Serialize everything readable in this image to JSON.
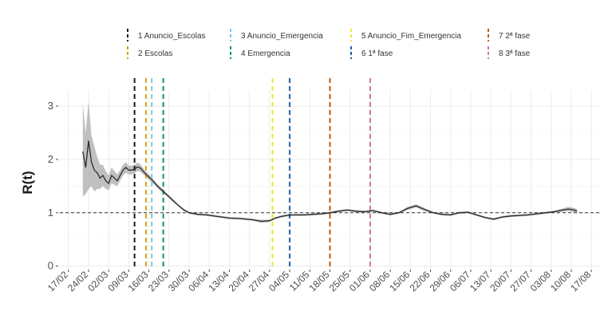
{
  "chart_data": {
    "type": "line",
    "title": "",
    "xlabel": "",
    "ylabel": "R(t)",
    "ylim": [
      -0.05,
      3.3
    ],
    "y_ticks": [
      0,
      1,
      2,
      3
    ],
    "grid": true,
    "reference_line": {
      "y": 1,
      "style": "dashed",
      "color": "#333333"
    },
    "x_ticks": [
      "17/02",
      "24/02",
      "02/03",
      "09/03",
      "16/03",
      "23/03",
      "30/03",
      "06/04",
      "13/04",
      "20/04",
      "27/04",
      "04/05",
      "11/05",
      "18/05",
      "25/05",
      "01/06",
      "08/06",
      "15/06",
      "22/06",
      "29/06",
      "06/07",
      "13/07",
      "20/07",
      "27/07",
      "03/08",
      "10/08",
      "17/08"
    ],
    "legend": {
      "placement": "top",
      "entries": [
        {
          "label": "1 Anuncio_Escolas",
          "color": "#1a1a1a",
          "day": 23
        },
        {
          "label": "2 Escolas",
          "color": "#d9a21a",
          "day": 27
        },
        {
          "label": "3 Anuncio_Emergencia",
          "color": "#7fc4e8",
          "day": 29
        },
        {
          "label": "4 Emergencia",
          "color": "#0e8f73",
          "day": 33
        },
        {
          "label": "5 Anuncio_Fim_Emergencia",
          "color": "#f0e442",
          "day": 71
        },
        {
          "label": "6 1ª fase",
          "color": "#1f5fa0",
          "day": 77
        },
        {
          "label": "7 2ª fase",
          "color": "#c0580f",
          "day": 91
        },
        {
          "label": "8 3ª fase",
          "color": "#cc79a7",
          "day": 105
        }
      ]
    },
    "series": [
      {
        "x_day": [
          5,
          6,
          7,
          8,
          9,
          10,
          11,
          12,
          13,
          14,
          15,
          16,
          17,
          18,
          19,
          20,
          21,
          22,
          23,
          24,
          25,
          26,
          27,
          28,
          29,
          30,
          31,
          32,
          33,
          34,
          35,
          36,
          38,
          40,
          42,
          45,
          48,
          52,
          56,
          60,
          64,
          67,
          70,
          72,
          74,
          76,
          78,
          80,
          82,
          85,
          88,
          91,
          94,
          97,
          100,
          103,
          106,
          109,
          112,
          115,
          118,
          121,
          124,
          127,
          130,
          133,
          136,
          139,
          142,
          145,
          148,
          151,
          154,
          157,
          160,
          163,
          166,
          169,
          172,
          174,
          176,
          177
        ],
        "y": [
          2.15,
          1.85,
          2.35,
          1.95,
          1.8,
          1.75,
          1.65,
          1.7,
          1.6,
          1.55,
          1.7,
          1.65,
          1.6,
          1.7,
          1.8,
          1.85,
          1.8,
          1.8,
          1.82,
          1.86,
          1.84,
          1.78,
          1.72,
          1.67,
          1.62,
          1.56,
          1.5,
          1.45,
          1.4,
          1.35,
          1.3,
          1.25,
          1.15,
          1.06,
          1.0,
          0.97,
          0.96,
          0.93,
          0.9,
          0.89,
          0.87,
          0.84,
          0.85,
          0.9,
          0.93,
          0.95,
          0.96,
          0.96,
          0.96,
          0.97,
          0.98,
          1.0,
          1.03,
          1.05,
          1.03,
          1.02,
          1.04,
          1.0,
          0.97,
          1.0,
          1.08,
          1.13,
          1.06,
          1.0,
          0.97,
          0.96,
          1.0,
          1.01,
          0.96,
          0.91,
          0.88,
          0.92,
          0.94,
          0.95,
          0.96,
          0.98,
          1.0,
          1.02,
          1.05,
          1.07,
          1.05,
          1.03
        ],
        "lower": [
          1.3,
          1.35,
          1.45,
          1.5,
          1.4,
          1.45,
          1.45,
          1.5,
          1.45,
          1.42,
          1.55,
          1.52,
          1.5,
          1.6,
          1.7,
          1.75,
          1.72,
          1.72,
          1.74,
          1.78,
          1.77,
          1.72,
          1.67,
          1.62,
          1.57,
          1.52,
          1.46,
          1.41,
          1.36,
          1.32,
          1.27,
          1.22,
          1.13,
          1.04,
          0.98,
          0.95,
          0.94,
          0.91,
          0.88,
          0.87,
          0.85,
          0.81,
          0.83,
          0.88,
          0.91,
          0.93,
          0.94,
          0.94,
          0.94,
          0.95,
          0.96,
          0.98,
          1.01,
          1.03,
          1.01,
          1.0,
          1.02,
          0.98,
          0.95,
          0.98,
          1.05,
          1.1,
          1.03,
          0.98,
          0.95,
          0.94,
          0.98,
          0.99,
          0.94,
          0.89,
          0.86,
          0.9,
          0.92,
          0.93,
          0.94,
          0.96,
          0.98,
          1.0,
          1.02,
          1.03,
          1.01,
          0.99
        ],
        "upper": [
          3.05,
          2.5,
          3.1,
          2.45,
          2.25,
          2.05,
          1.9,
          1.9,
          1.78,
          1.7,
          1.85,
          1.78,
          1.72,
          1.8,
          1.9,
          1.95,
          1.88,
          1.88,
          1.9,
          1.94,
          1.91,
          1.84,
          1.77,
          1.72,
          1.67,
          1.6,
          1.54,
          1.49,
          1.44,
          1.38,
          1.33,
          1.28,
          1.17,
          1.08,
          1.02,
          0.99,
          0.98,
          0.95,
          0.92,
          0.91,
          0.89,
          0.87,
          0.87,
          0.92,
          0.95,
          0.97,
          0.98,
          0.98,
          0.98,
          0.99,
          1.0,
          1.02,
          1.05,
          1.07,
          1.05,
          1.04,
          1.06,
          1.02,
          0.99,
          1.02,
          1.11,
          1.16,
          1.09,
          1.02,
          0.99,
          0.98,
          1.02,
          1.03,
          0.98,
          0.93,
          0.9,
          0.94,
          0.96,
          0.97,
          0.98,
          1.0,
          1.02,
          1.04,
          1.08,
          1.11,
          1.09,
          1.07
        ]
      }
    ]
  },
  "colors": {
    "line": "#2b2b2b",
    "band": "#b5b5b5",
    "grid": "#ebebeb",
    "axis_text": "#4d4d4d"
  }
}
